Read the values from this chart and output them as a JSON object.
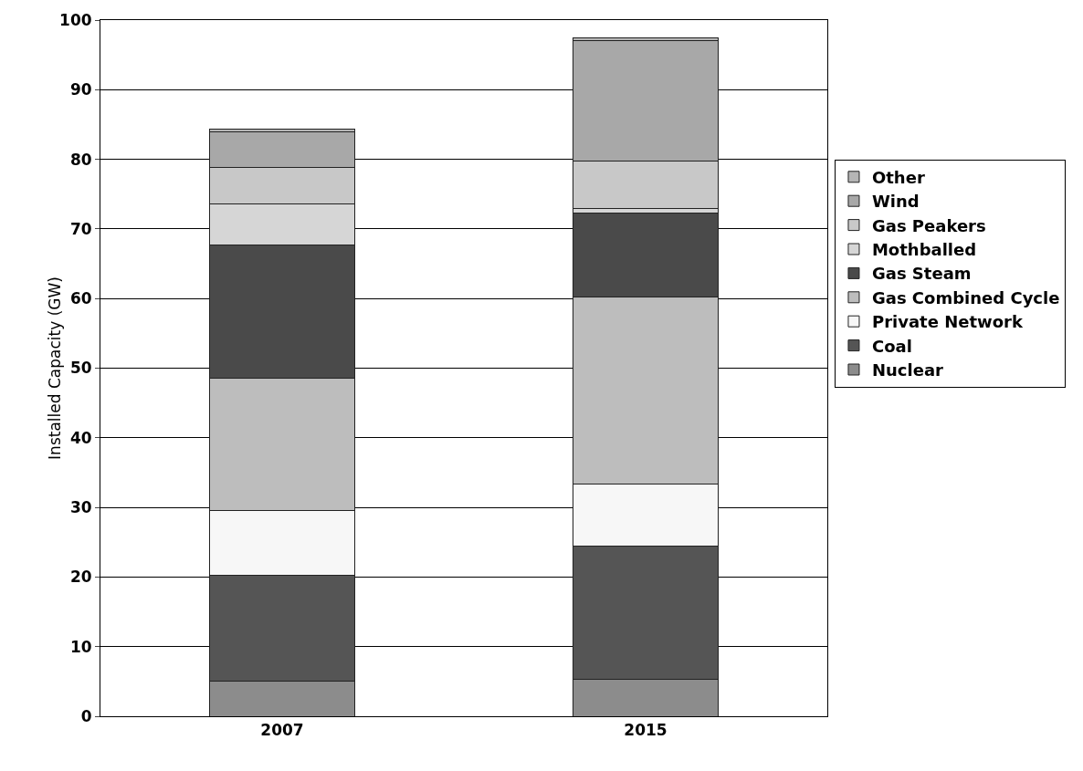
{
  "chart_data": {
    "type": "bar",
    "stacked": true,
    "ylabel": "Installed Capacity (GW)",
    "categories": [
      "2007",
      "2015"
    ],
    "ylim": [
      0,
      100
    ],
    "yticks": [
      0,
      10,
      20,
      30,
      40,
      50,
      60,
      70,
      80,
      90,
      100
    ],
    "grid": "y",
    "legend": "right",
    "series": [
      {
        "name": "Nuclear",
        "color": "#8c8c8c",
        "values": [
          5,
          5.3
        ]
      },
      {
        "name": "Coal",
        "color": "#555555",
        "values": [
          15.2,
          19.1
        ]
      },
      {
        "name": "Private Network",
        "color": "#f7f7f7",
        "values": [
          9.4,
          9
        ]
      },
      {
        "name": "Gas Combined Cycle",
        "color": "#bdbdbd",
        "values": [
          19,
          26.8
        ]
      },
      {
        "name": "Gas Steam",
        "color": "#4a4a4a",
        "values": [
          19.1,
          12.1
        ]
      },
      {
        "name": "Mothballed",
        "color": "#d6d6d6",
        "values": [
          5.9,
          0.7
        ]
      },
      {
        "name": "Gas Peakers",
        "color": "#c8c8c8",
        "values": [
          5.2,
          6.8
        ]
      },
      {
        "name": "Wind",
        "color": "#a8a8a8",
        "values": [
          5.2,
          17.2
        ]
      },
      {
        "name": "Other",
        "color": "#b5b5b5",
        "values": [
          0.4,
          0.5
        ]
      }
    ]
  }
}
